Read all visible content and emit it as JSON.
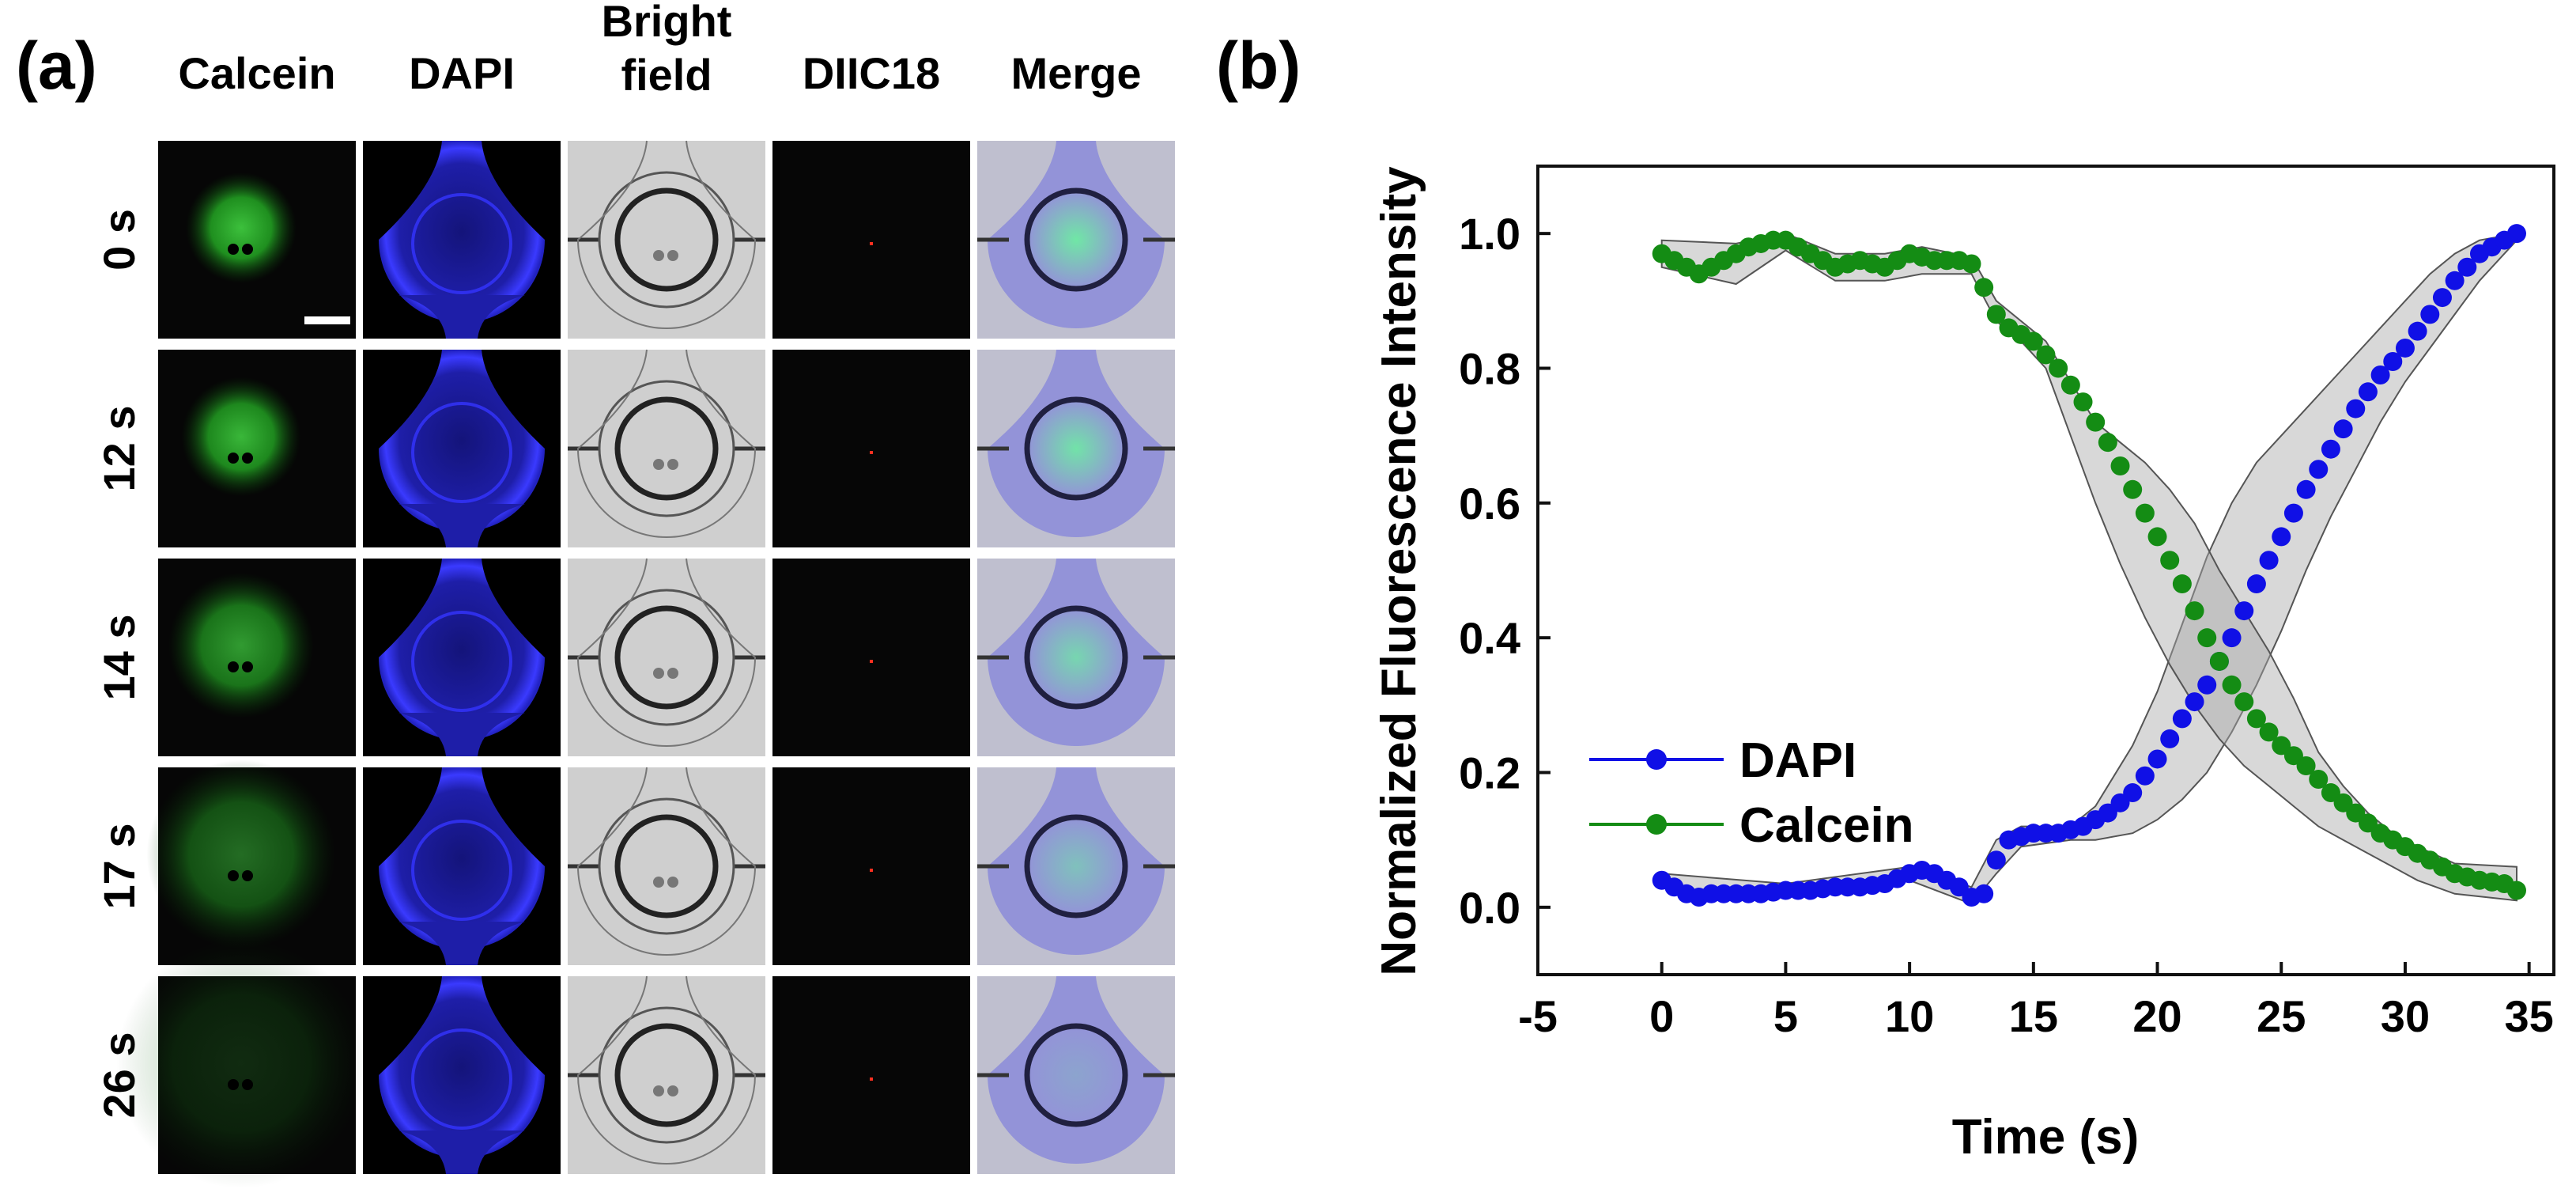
{
  "panel_a": {
    "label": "(a)",
    "column_headers": [
      "Calcein",
      "DAPI",
      "Bright\nfield",
      "DIIC18",
      "Merge"
    ],
    "row_labels": [
      "0 s",
      "12 s",
      "14 s",
      "17 s",
      "26 s"
    ],
    "calcein_glow": [
      1.0,
      0.95,
      0.8,
      0.55,
      0.2
    ],
    "colors": {
      "calcein": "#2f9e2f",
      "dapi": "#2a2ad6",
      "brightfield": "#cfcfcf",
      "diic18": "#ff3020",
      "tile_bg": "#060606"
    }
  },
  "panel_b": {
    "label": "(b)"
  },
  "chart_data": {
    "type": "line",
    "xlabel": "Time (s)",
    "ylabel": "Normalized Fluorescence Intensity",
    "xlim": [
      -5,
      36
    ],
    "ylim": [
      -0.1,
      1.1
    ],
    "xticks": [
      -5,
      0,
      5,
      10,
      15,
      20,
      25,
      30,
      35
    ],
    "yticks": [
      0.0,
      0.2,
      0.4,
      0.6,
      0.8,
      1.0
    ],
    "xtick_labels": [
      "-5",
      "0",
      "5",
      "10",
      "15",
      "20",
      "25",
      "30",
      "35"
    ],
    "ytick_labels": [
      "0.0",
      "0.2",
      "0.4",
      "0.6",
      "0.8",
      "1.0"
    ],
    "grid": false,
    "legend_position": "lower-left",
    "series": [
      {
        "name": "DAPI",
        "color": "#1010e6",
        "points": [
          [
            0,
            0.04
          ],
          [
            0.5,
            0.03
          ],
          [
            1,
            0.02
          ],
          [
            1.5,
            0.015
          ],
          [
            2,
            0.02
          ],
          [
            3,
            0.02
          ],
          [
            4,
            0.02
          ],
          [
            5,
            0.025
          ],
          [
            6,
            0.025
          ],
          [
            7,
            0.03
          ],
          [
            8,
            0.03
          ],
          [
            9,
            0.035
          ],
          [
            10,
            0.05
          ],
          [
            10.5,
            0.055
          ],
          [
            11,
            0.05
          ],
          [
            12,
            0.03
          ],
          [
            12.5,
            0.015
          ],
          [
            13,
            0.02
          ],
          [
            13.5,
            0.07
          ],
          [
            14,
            0.1
          ],
          [
            15,
            0.11
          ],
          [
            16,
            0.11
          ],
          [
            17,
            0.12
          ],
          [
            18,
            0.14
          ],
          [
            19,
            0.17
          ],
          [
            20,
            0.22
          ],
          [
            21,
            0.28
          ],
          [
            22,
            0.33
          ],
          [
            23,
            0.4
          ],
          [
            24,
            0.48
          ],
          [
            25,
            0.55
          ],
          [
            26,
            0.62
          ],
          [
            27,
            0.68
          ],
          [
            28,
            0.74
          ],
          [
            29,
            0.79
          ],
          [
            30,
            0.83
          ],
          [
            31,
            0.88
          ],
          [
            32,
            0.93
          ],
          [
            33,
            0.97
          ],
          [
            34,
            0.99
          ],
          [
            34.5,
            1.0
          ]
        ],
        "band_upper": [
          [
            0,
            0.05
          ],
          [
            5,
            0.035
          ],
          [
            10,
            0.06
          ],
          [
            12.5,
            0.03
          ],
          [
            13.5,
            0.1
          ],
          [
            14.5,
            0.12
          ],
          [
            16.5,
            0.12
          ],
          [
            17.5,
            0.15
          ],
          [
            19,
            0.24
          ],
          [
            20,
            0.32
          ],
          [
            21,
            0.42
          ],
          [
            22,
            0.52
          ],
          [
            23,
            0.6
          ],
          [
            24,
            0.66
          ],
          [
            25,
            0.7
          ],
          [
            26,
            0.74
          ],
          [
            27,
            0.78
          ],
          [
            28,
            0.82
          ],
          [
            29,
            0.86
          ],
          [
            30,
            0.9
          ],
          [
            31,
            0.94
          ],
          [
            32,
            0.97
          ],
          [
            33,
            0.99
          ],
          [
            34.5,
            1.0
          ]
        ],
        "band_lower": [
          [
            0,
            0.03
          ],
          [
            5,
            0.015
          ],
          [
            10,
            0.04
          ],
          [
            12.5,
            0.005
          ],
          [
            13.5,
            0.05
          ],
          [
            14.5,
            0.09
          ],
          [
            16.5,
            0.1
          ],
          [
            17.5,
            0.1
          ],
          [
            19,
            0.11
          ],
          [
            20,
            0.13
          ],
          [
            21,
            0.16
          ],
          [
            22,
            0.2
          ],
          [
            23,
            0.26
          ],
          [
            24,
            0.33
          ],
          [
            25,
            0.41
          ],
          [
            26,
            0.5
          ],
          [
            27,
            0.58
          ],
          [
            28,
            0.65
          ],
          [
            29,
            0.72
          ],
          [
            30,
            0.78
          ],
          [
            31,
            0.83
          ],
          [
            32,
            0.88
          ],
          [
            33,
            0.93
          ],
          [
            34.5,
            0.99
          ]
        ]
      },
      {
        "name": "Calcein",
        "color": "#148c14",
        "points": [
          [
            0,
            0.97
          ],
          [
            0.5,
            0.96
          ],
          [
            1,
            0.95
          ],
          [
            1.5,
            0.94
          ],
          [
            2,
            0.95
          ],
          [
            2.5,
            0.96
          ],
          [
            3,
            0.97
          ],
          [
            3.5,
            0.98
          ],
          [
            4,
            0.985
          ],
          [
            4.5,
            0.99
          ],
          [
            5,
            0.99
          ],
          [
            5.5,
            0.98
          ],
          [
            6,
            0.97
          ],
          [
            6.5,
            0.96
          ],
          [
            7,
            0.95
          ],
          [
            8,
            0.96
          ],
          [
            9,
            0.95
          ],
          [
            10,
            0.97
          ],
          [
            11,
            0.96
          ],
          [
            12,
            0.96
          ],
          [
            12.5,
            0.955
          ],
          [
            13,
            0.92
          ],
          [
            13.5,
            0.88
          ],
          [
            14,
            0.86
          ],
          [
            15,
            0.84
          ],
          [
            16,
            0.8
          ],
          [
            17,
            0.75
          ],
          [
            18,
            0.69
          ],
          [
            19,
            0.62
          ],
          [
            20,
            0.55
          ],
          [
            21,
            0.48
          ],
          [
            22,
            0.4
          ],
          [
            23,
            0.33
          ],
          [
            24,
            0.28
          ],
          [
            25,
            0.24
          ],
          [
            26,
            0.21
          ],
          [
            27,
            0.17
          ],
          [
            28,
            0.14
          ],
          [
            29,
            0.11
          ],
          [
            30,
            0.09
          ],
          [
            31,
            0.07
          ],
          [
            32,
            0.05
          ],
          [
            33,
            0.04
          ],
          [
            34,
            0.035
          ],
          [
            34.5,
            0.025
          ]
        ],
        "band_upper": [
          [
            0,
            0.99
          ],
          [
            3,
            0.985
          ],
          [
            5,
            1.0
          ],
          [
            7,
            0.97
          ],
          [
            9,
            0.97
          ],
          [
            10.5,
            0.98
          ],
          [
            12.5,
            0.965
          ],
          [
            13.5,
            0.9
          ],
          [
            14.5,
            0.87
          ],
          [
            15.5,
            0.84
          ],
          [
            16.5,
            0.78
          ],
          [
            17.5,
            0.72
          ],
          [
            18.5,
            0.69
          ],
          [
            19.5,
            0.66
          ],
          [
            20.5,
            0.62
          ],
          [
            21.5,
            0.57
          ],
          [
            22.5,
            0.5
          ],
          [
            23.5,
            0.44
          ],
          [
            24.5,
            0.38
          ],
          [
            25.5,
            0.31
          ],
          [
            26.5,
            0.23
          ],
          [
            27.5,
            0.18
          ],
          [
            28.5,
            0.14
          ],
          [
            29.5,
            0.11
          ],
          [
            30.5,
            0.09
          ],
          [
            32,
            0.065
          ],
          [
            34.5,
            0.06
          ]
        ],
        "band_lower": [
          [
            0,
            0.95
          ],
          [
            3,
            0.925
          ],
          [
            5,
            0.975
          ],
          [
            7,
            0.93
          ],
          [
            9,
            0.93
          ],
          [
            10.5,
            0.94
          ],
          [
            12.5,
            0.94
          ],
          [
            13.5,
            0.87
          ],
          [
            14.5,
            0.84
          ],
          [
            15.5,
            0.8
          ],
          [
            16.5,
            0.7
          ],
          [
            17.5,
            0.6
          ],
          [
            18.5,
            0.51
          ],
          [
            19.5,
            0.43
          ],
          [
            20.5,
            0.36
          ],
          [
            21.5,
            0.3
          ],
          [
            22.5,
            0.25
          ],
          [
            23.5,
            0.21
          ],
          [
            24.5,
            0.18
          ],
          [
            25.5,
            0.15
          ],
          [
            26.5,
            0.12
          ],
          [
            27.5,
            0.1
          ],
          [
            28.5,
            0.08
          ],
          [
            29.5,
            0.06
          ],
          [
            30.5,
            0.04
          ],
          [
            32,
            0.02
          ],
          [
            34.5,
            0.01
          ]
        ]
      }
    ]
  }
}
